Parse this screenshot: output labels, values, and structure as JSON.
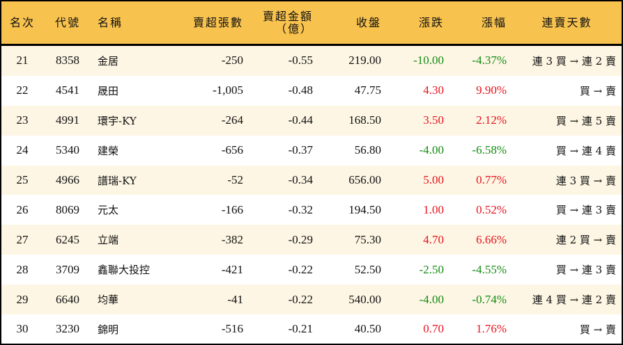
{
  "colors": {
    "header_bg": "#F8C24E",
    "odd_row_bg": "#FDF6E4",
    "up": "#E8121E",
    "down": "#128C12"
  },
  "headers": [
    "名次",
    "代號",
    "名稱",
    "賣超張數",
    "賣超金額",
    "（億）",
    "收盤",
    "漲跌",
    "漲幅",
    "連賣天數"
  ],
  "rows": [
    [
      "21",
      "8358",
      "金居",
      "-250",
      "-0.55",
      "219.00",
      "-10.00",
      "-4.37%",
      "連 3 買 → 連 2 賣",
      "down"
    ],
    [
      "22",
      "4541",
      "晟田",
      "-1,005",
      "-0.48",
      "47.75",
      "4.30",
      "9.90%",
      "買 → 賣",
      "up"
    ],
    [
      "23",
      "4991",
      "環宇-KY",
      "-264",
      "-0.44",
      "168.50",
      "3.50",
      "2.12%",
      "買 → 連 5 賣",
      "up"
    ],
    [
      "24",
      "5340",
      "建榮",
      "-656",
      "-0.37",
      "56.80",
      "-4.00",
      "-6.58%",
      "買 → 連 4 賣",
      "down"
    ],
    [
      "25",
      "4966",
      "譜瑞-KY",
      "-52",
      "-0.34",
      "656.00",
      "5.00",
      "0.77%",
      "連 3 買 → 賣",
      "up"
    ],
    [
      "26",
      "8069",
      "元太",
      "-166",
      "-0.32",
      "194.50",
      "1.00",
      "0.52%",
      "買 → 連 3 賣",
      "up"
    ],
    [
      "27",
      "6245",
      "立端",
      "-382",
      "-0.29",
      "75.30",
      "4.70",
      "6.66%",
      "連 2 買 → 賣",
      "up"
    ],
    [
      "28",
      "3709",
      "鑫聯大投控",
      "-421",
      "-0.22",
      "52.50",
      "-2.50",
      "-4.55%",
      "買 → 連 3 賣",
      "down"
    ],
    [
      "29",
      "6640",
      "均華",
      "-41",
      "-0.22",
      "540.00",
      "-4.00",
      "-0.74%",
      "連 4 買 → 連 2 賣",
      "down"
    ],
    [
      "30",
      "3230",
      "錦明",
      "-516",
      "-0.21",
      "40.50",
      "0.70",
      "1.76%",
      "買 → 賣",
      "up"
    ]
  ]
}
